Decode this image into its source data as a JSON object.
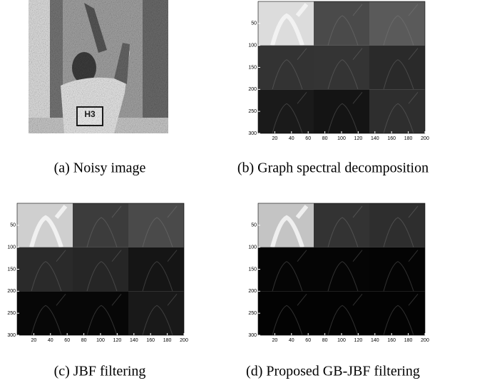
{
  "panels": [
    {
      "caption": "(a) Noisy image"
    },
    {
      "caption": "(b) Graph spectral decomposition",
      "xlim": [
        0,
        200
      ],
      "ylim": [
        0,
        300
      ],
      "xticks": [
        20,
        40,
        60,
        80,
        100,
        120,
        140,
        160,
        180,
        200
      ],
      "yticks": [
        50,
        100,
        150,
        200,
        250,
        300
      ]
    },
    {
      "caption": "(c) JBF filtering",
      "xlim": [
        0,
        200
      ],
      "ylim": [
        0,
        300
      ],
      "xticks": [
        20,
        40,
        60,
        80,
        100,
        120,
        140,
        160,
        180,
        200
      ],
      "yticks": [
        50,
        100,
        150,
        200,
        250,
        300
      ]
    },
    {
      "caption": "(d) Proposed GB-JBF filtering",
      "xlim": [
        0,
        200
      ],
      "ylim": [
        0,
        300
      ],
      "xticks": [
        20,
        40,
        60,
        80,
        100,
        120,
        140,
        160,
        180,
        200
      ],
      "yticks": [
        50,
        100,
        150,
        200,
        250,
        300
      ]
    }
  ]
}
